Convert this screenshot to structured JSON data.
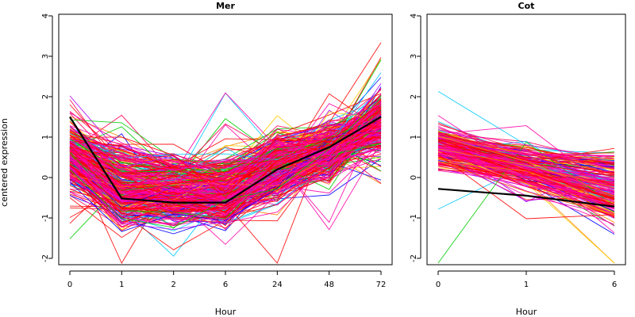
{
  "figure": {
    "ylabel": "centered expression"
  },
  "chart_data": [
    {
      "type": "line",
      "title": "Mer",
      "xlabel": "Hour",
      "ylabel": "centered expression",
      "categories": [
        "0",
        "1",
        "2",
        "6",
        "24",
        "48",
        "72"
      ],
      "yticks": [
        -2,
        -1,
        0,
        1,
        2,
        3,
        4
      ],
      "ylim": [
        -2,
        4
      ],
      "grid": false,
      "legend": "none",
      "gene_profile_count": "many (hundreds of individual gene traces)",
      "gene_profile_colors": [
        "#ff0000",
        "#ff00aa",
        "#0000ff",
        "#00c8ff",
        "#00cc00",
        "#ffcc00",
        "#ff8800",
        "#aa00ff",
        "#ff0055"
      ],
      "mean_profile": {
        "color": "#000000",
        "values": [
          1.5,
          -0.52,
          -0.62,
          -0.62,
          0.2,
          0.75,
          1.5
        ]
      }
    },
    {
      "type": "line",
      "title": "Cot",
      "xlabel": "Hour",
      "ylabel": "",
      "categories": [
        "0",
        "1",
        "6"
      ],
      "yticks": [
        -2,
        -1,
        0,
        1,
        2,
        3,
        4
      ],
      "ylim": [
        -2,
        4
      ],
      "grid": false,
      "legend": "none",
      "gene_profile_count": "many (hundreds of individual gene traces)",
      "gene_profile_colors": [
        "#ff0000",
        "#ff00aa",
        "#0000ff",
        "#00c8ff",
        "#00cc00",
        "#ffcc00",
        "#ff8800",
        "#aa00ff",
        "#ff0055"
      ],
      "mean_profile": {
        "color": "#000000",
        "values": [
          -0.28,
          -0.45,
          -0.72
        ]
      }
    }
  ]
}
